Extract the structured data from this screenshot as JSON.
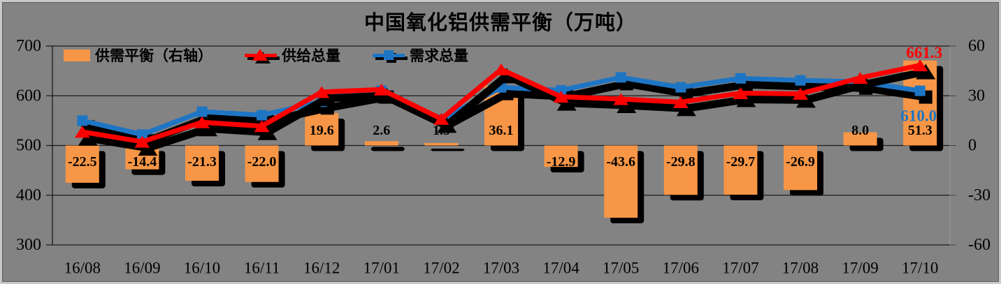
{
  "title": "中国氧化铝供需平衡（万吨）",
  "legend": [
    {
      "id": "balance",
      "label": "供需平衡（右轴）",
      "marker": "bar-swatch",
      "color": "#F79646"
    },
    {
      "id": "supply",
      "label": "供给总量",
      "marker": "triangle",
      "color": "#FE0000"
    },
    {
      "id": "demand",
      "label": "需求总量",
      "marker": "square",
      "color": "#1E75C4"
    }
  ],
  "colors": {
    "background": "#838383",
    "bar": "#F79646",
    "supply_line": "#FE0000",
    "demand_line": "#1E75C4",
    "shadow": "#000000",
    "gridline": "#1a1a1a",
    "text": "#000000"
  },
  "chart_data": {
    "type": "combo",
    "title": "中国氧化铝供需平衡（万吨）",
    "categories": [
      "16/08",
      "16/09",
      "16/10",
      "16/11",
      "16/12",
      "17/01",
      "17/02",
      "17/03",
      "17/04",
      "17/05",
      "17/06",
      "17/07",
      "17/08",
      "17/09",
      "17/10"
    ],
    "series": [
      {
        "name": "供需平衡（右轴）",
        "type": "bar",
        "axis": "right",
        "color": "#F79646",
        "values": [
          -22.5,
          -14.4,
          -21.3,
          -22.0,
          19.6,
          2.6,
          1.5,
          36.1,
          -12.9,
          -43.6,
          -29.8,
          -29.7,
          -26.9,
          8.0,
          51.3
        ],
        "labels": [
          "-22.5",
          "-14.4",
          "-21.3",
          "-22.0",
          "19.6",
          "2.6",
          "1.5",
          "36.1",
          "-12.9",
          "-43.6",
          "-29.8",
          "-29.7",
          "-26.9",
          "8.0",
          "51.3"
        ]
      },
      {
        "name": "供给总量",
        "type": "line",
        "marker": "triangle",
        "axis": "left",
        "color": "#FE0000",
        "values": [
          527.5,
          507.6,
          546.7,
          539.0,
          607.6,
          612.6,
          553.5,
          653.1,
          598.1,
          593.4,
          587.2,
          605.3,
          604.1,
          636.0,
          661.3
        ]
      },
      {
        "name": "需求总量",
        "type": "line",
        "marker": "square",
        "axis": "left",
        "color": "#1E75C4",
        "values": [
          550.0,
          522.0,
          568.0,
          561.0,
          588.0,
          610.0,
          552.0,
          617.0,
          611.0,
          637.0,
          617.0,
          635.0,
          631.0,
          628.0,
          610.0
        ]
      }
    ],
    "left_axis": {
      "min": 300,
      "max": 700,
      "ticks": [
        700,
        600,
        500,
        400,
        300
      ]
    },
    "right_axis": {
      "min": -60,
      "max": 60,
      "ticks": [
        60,
        30,
        0,
        -30,
        -60
      ]
    },
    "annotations": [
      {
        "series": "supply",
        "text": "661.3",
        "color": "#FE0000"
      },
      {
        "series": "demand",
        "text": "610.0",
        "color": "#1E75C4"
      }
    ],
    "grid": "horizontal",
    "legend_position": "top-left-inside"
  }
}
